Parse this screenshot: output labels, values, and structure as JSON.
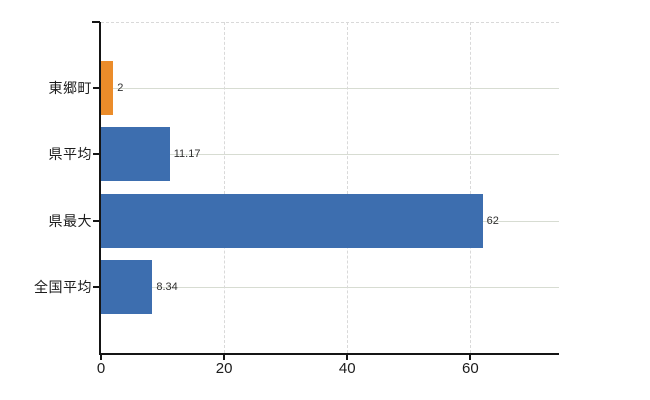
{
  "chart_data": {
    "type": "bar",
    "orientation": "horizontal",
    "title": "",
    "xlabel": "",
    "ylabel": "",
    "categories": [
      "東郷町",
      "県平均",
      "県最大",
      "全国平均"
    ],
    "values": [
      2,
      11.17,
      62,
      8.34
    ],
    "value_labels": [
      "2",
      "11.17",
      "62",
      "8.34"
    ],
    "bar_colors": [
      "#EB8C2A",
      "#3D6EAF",
      "#3D6EAF",
      "#3D6EAF"
    ],
    "x_ticks": [
      {
        "value": 0,
        "label": "0"
      },
      {
        "value": 20,
        "label": "20"
      },
      {
        "value": 40,
        "label": "40"
      },
      {
        "value": 60,
        "label": "60"
      }
    ],
    "xlim": [
      0,
      74.4
    ],
    "grid": "horizontal-solid and vertical-dashed",
    "legend": "none"
  },
  "colors": {
    "background": "#ffffff",
    "bar_blue": "#3D6EAF",
    "bar_orange": "#EB8C2A",
    "axis_line": "#151515",
    "gridline_solid": "#D7DCD2",
    "gridline_dashed": "#D9D9D9",
    "category_text": "#1c1c1c",
    "value_text": "#303030",
    "tick_text": "#1c1c1c"
  }
}
